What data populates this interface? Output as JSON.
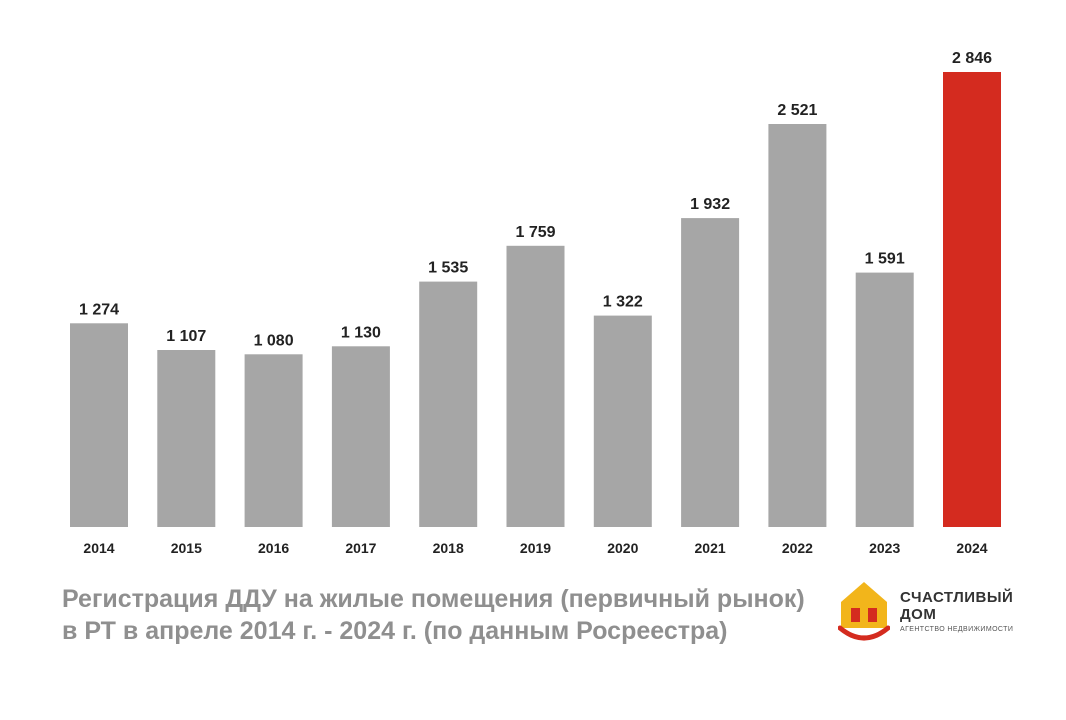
{
  "chart_data": {
    "type": "bar",
    "categories": [
      "2014",
      "2015",
      "2016",
      "2017",
      "2018",
      "2019",
      "2020",
      "2021",
      "2022",
      "2023",
      "2024"
    ],
    "values": [
      1274,
      1107,
      1080,
      1130,
      1535,
      1759,
      1322,
      1932,
      2521,
      1591,
      2846
    ],
    "value_labels": [
      "1 274",
      "1 107",
      "1 080",
      "1 130",
      "1 535",
      "1 759",
      "1 322",
      "1 932",
      "2 521",
      "1 591",
      "2 846"
    ],
    "highlight_index": 10,
    "colors": {
      "bar": "#a6a6a6",
      "highlight": "#d42b1f",
      "label": "#222222"
    },
    "ylim": [
      0,
      2846
    ],
    "grid": false,
    "legend": "none"
  },
  "caption": {
    "line1": "Регистрация ДДУ на жилые помещения (первичный рынок)",
    "line2": "в РТ в апреле 2014 г. - 2024 г. (по данным Росреестра)"
  },
  "brand": {
    "line1": "СЧАСТЛИВЫЙ",
    "line2": "ДОМ",
    "tagline": "АГЕНТСТВО НЕДВИЖИМОСТИ",
    "logo_icon": "house-smile-icon",
    "colors": {
      "house": "#f2b51b",
      "windows": "#d42b1f",
      "smile": "#d42b1f"
    }
  }
}
